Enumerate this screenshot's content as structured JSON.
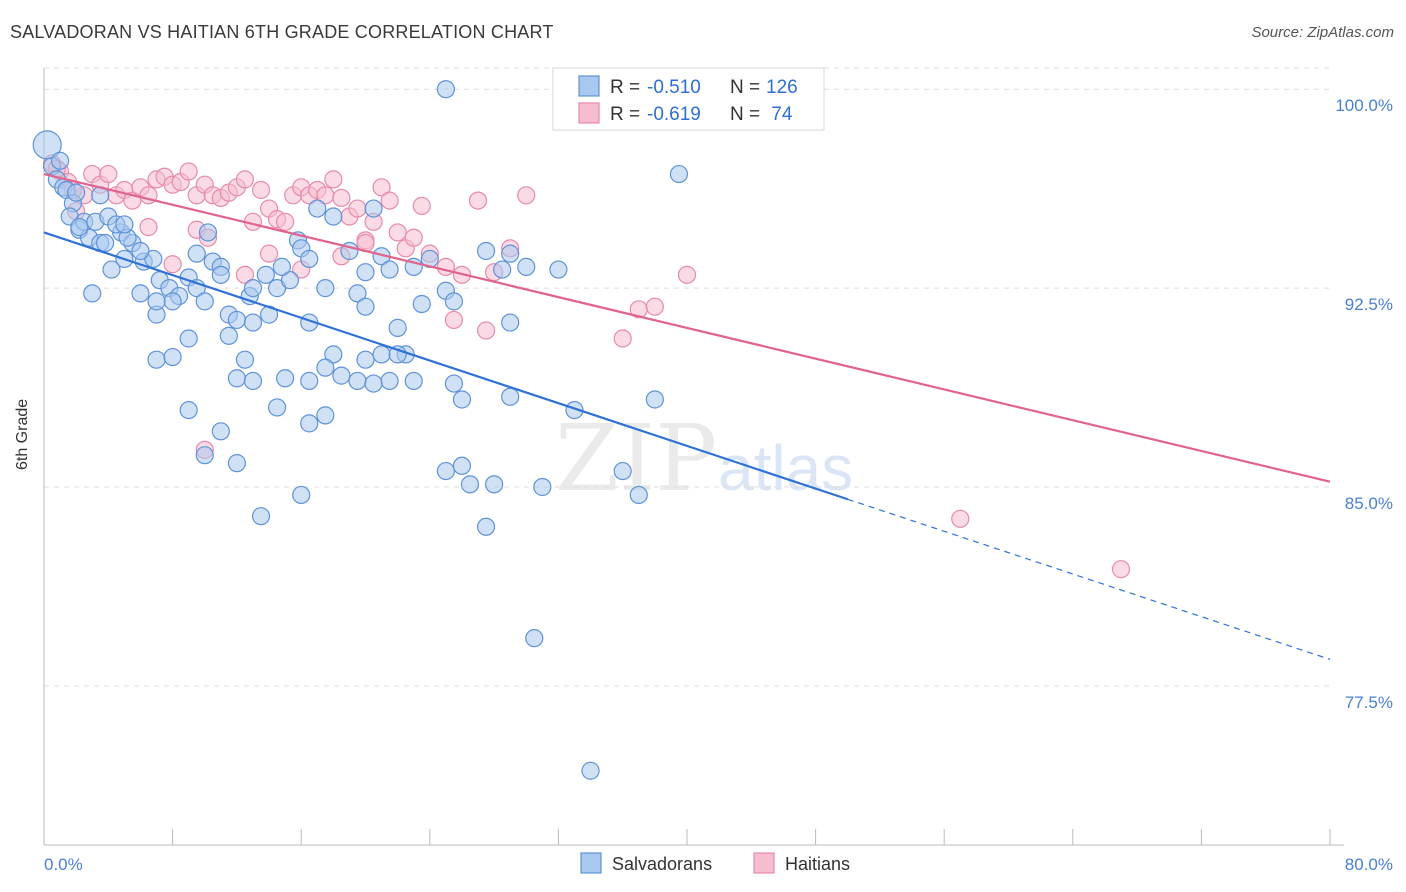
{
  "header": {
    "title": "SALVADORAN VS HAITIAN 6TH GRADE CORRELATION CHART",
    "source": "Source: ZipAtlas.com"
  },
  "watermark": {
    "zip": "ZIP",
    "atlas": "atlas"
  },
  "colors": {
    "blue_fill": "#a9c8ef",
    "blue_stroke": "#5f93d8",
    "blue_line": "#2f72d6",
    "pink_fill": "#f6bdd0",
    "pink_stroke": "#e88aab",
    "pink_line": "#e0648e",
    "axis_label": "#4a7fd4",
    "grid": "#dddddd"
  },
  "stats": {
    "rows": [
      {
        "r_label": "R = ",
        "r_value": "-0.510",
        "n_label": "N = ",
        "n_value": "126"
      },
      {
        "r_label": "R = ",
        "r_value": "-0.619",
        "n_label": "N = ",
        "n_value": " 74"
      }
    ]
  },
  "legend": {
    "items": [
      "Salvadorans",
      "Haitians"
    ]
  },
  "chart_data": {
    "type": "scatter",
    "title": "SALVADORAN VS HAITIAN 6TH GRADE CORRELATION CHART",
    "xlabel": "",
    "ylabel": "6th Grade",
    "xlim": [
      0,
      80
    ],
    "ylim": [
      71.5,
      100.8
    ],
    "x_tick_labels": [
      "0.0%",
      "80.0%"
    ],
    "y_ticks": [
      77.5,
      85.0,
      92.5,
      100.0
    ],
    "y_tick_labels": [
      "77.5%",
      "85.0%",
      "92.5%",
      "100.0%"
    ],
    "grid": true,
    "series": [
      {
        "name": "Salvadorans",
        "trend": {
          "x0": 0,
          "y0": 94.6,
          "x1": 80,
          "y1": 78.5,
          "solid_until": 50
        },
        "points": [
          [
            0.2,
            97.9
          ],
          [
            0.5,
            97.1
          ],
          [
            0.8,
            96.6
          ],
          [
            1.2,
            96.3
          ],
          [
            1.4,
            96.2
          ],
          [
            1.8,
            95.7
          ],
          [
            1.6,
            95.2
          ],
          [
            2.2,
            94.7
          ],
          [
            2.5,
            95.0
          ],
          [
            2.8,
            94.4
          ],
          [
            3.2,
            95.0
          ],
          [
            3.5,
            94.2
          ],
          [
            3.8,
            94.2
          ],
          [
            4.0,
            95.2
          ],
          [
            4.8,
            94.6
          ],
          [
            5.5,
            94.2
          ],
          [
            5.0,
            93.6
          ],
          [
            4.2,
            93.2
          ],
          [
            6.2,
            93.5
          ],
          [
            6.8,
            93.6
          ],
          [
            7.2,
            92.8
          ],
          [
            7.8,
            92.5
          ],
          [
            8.4,
            92.2
          ],
          [
            9.0,
            92.9
          ],
          [
            9.5,
            92.5
          ],
          [
            10.2,
            94.6
          ],
          [
            10.5,
            93.5
          ],
          [
            11.0,
            93.3
          ],
          [
            11.5,
            91.5
          ],
          [
            12.0,
            91.3
          ],
          [
            12.8,
            92.2
          ],
          [
            13.0,
            92.5
          ],
          [
            13.8,
            93.0
          ],
          [
            14.5,
            92.5
          ],
          [
            15.3,
            92.8
          ],
          [
            15.8,
            94.3
          ],
          [
            16.0,
            94.0
          ],
          [
            16.5,
            93.6
          ],
          [
            17.0,
            95.5
          ],
          [
            17.5,
            92.5
          ],
          [
            18.0,
            95.2
          ],
          [
            19.0,
            93.9
          ],
          [
            19.5,
            92.3
          ],
          [
            20.0,
            91.8
          ],
          [
            20.5,
            95.5
          ],
          [
            21.0,
            93.7
          ],
          [
            21.5,
            93.2
          ],
          [
            22.0,
            91.0
          ],
          [
            22.5,
            90.0
          ],
          [
            23.0,
            93.3
          ],
          [
            23.5,
            91.9
          ],
          [
            24.0,
            93.6
          ],
          [
            25.0,
            92.4
          ],
          [
            25.5,
            92.0
          ],
          [
            27.5,
            93.9
          ],
          [
            28.5,
            93.2
          ],
          [
            30.0,
            93.3
          ],
          [
            29.0,
            91.2
          ],
          [
            7.0,
            91.5
          ],
          [
            8.0,
            92.0
          ],
          [
            9.0,
            90.6
          ],
          [
            10.0,
            92.0
          ],
          [
            11.5,
            90.7
          ],
          [
            13.0,
            91.2
          ],
          [
            14.0,
            91.5
          ],
          [
            16.5,
            91.2
          ],
          [
            18.0,
            90.0
          ],
          [
            20.0,
            89.8
          ],
          [
            21.0,
            90.0
          ],
          [
            22.0,
            90.0
          ],
          [
            7.0,
            89.8
          ],
          [
            8.0,
            89.9
          ],
          [
            12.5,
            89.8
          ],
          [
            12.0,
            89.1
          ],
          [
            13.0,
            89.0
          ],
          [
            15.0,
            89.1
          ],
          [
            16.5,
            89.0
          ],
          [
            17.5,
            89.5
          ],
          [
            18.5,
            89.2
          ],
          [
            19.5,
            89.0
          ],
          [
            20.5,
            88.9
          ],
          [
            21.5,
            89.0
          ],
          [
            23.0,
            89.0
          ],
          [
            25.5,
            88.9
          ],
          [
            26.0,
            88.3
          ],
          [
            29.0,
            88.4
          ],
          [
            33.0,
            87.9
          ],
          [
            38.0,
            88.3
          ],
          [
            9.0,
            87.9
          ],
          [
            14.5,
            88.0
          ],
          [
            16.5,
            87.4
          ],
          [
            17.5,
            87.7
          ],
          [
            11.0,
            87.1
          ],
          [
            12.0,
            85.9
          ],
          [
            10.0,
            86.2
          ],
          [
            25.0,
            85.6
          ],
          [
            26.0,
            85.8
          ],
          [
            26.5,
            85.1
          ],
          [
            28.0,
            85.1
          ],
          [
            31.0,
            85.0
          ],
          [
            36.0,
            85.6
          ],
          [
            37.0,
            84.7
          ],
          [
            16.0,
            84.7
          ],
          [
            27.5,
            83.5
          ],
          [
            13.5,
            83.9
          ],
          [
            30.5,
            79.3
          ],
          [
            34.0,
            74.3
          ],
          [
            39.5,
            96.8
          ],
          [
            25.0,
            100.0
          ],
          [
            29.0,
            93.8
          ],
          [
            32.0,
            93.2
          ],
          [
            3.0,
            92.3
          ],
          [
            6.0,
            92.3
          ],
          [
            7.0,
            92.0
          ],
          [
            2.0,
            96.1
          ],
          [
            1.0,
            97.3
          ],
          [
            4.5,
            94.9
          ],
          [
            5.2,
            94.4
          ],
          [
            6.0,
            93.9
          ],
          [
            2.2,
            94.8
          ],
          [
            3.5,
            96.0
          ],
          [
            5.0,
            94.9
          ],
          [
            9.5,
            93.8
          ],
          [
            11.0,
            93.0
          ],
          [
            14.8,
            93.3
          ],
          [
            20.0,
            93.1
          ]
        ]
      },
      {
        "name": "Haitians",
        "trend": {
          "x0": 0,
          "y0": 96.8,
          "x1": 80,
          "y1": 85.2
        },
        "points": [
          [
            0.5,
            97.2
          ],
          [
            1.0,
            96.9
          ],
          [
            1.5,
            96.5
          ],
          [
            2.0,
            95.4
          ],
          [
            2.5,
            96.0
          ],
          [
            3.0,
            96.8
          ],
          [
            3.5,
            96.4
          ],
          [
            4.0,
            96.8
          ],
          [
            4.5,
            96.0
          ],
          [
            5.0,
            96.2
          ],
          [
            5.5,
            95.8
          ],
          [
            6.0,
            96.3
          ],
          [
            6.5,
            96.0
          ],
          [
            7.0,
            96.6
          ],
          [
            7.5,
            96.7
          ],
          [
            8.0,
            96.4
          ],
          [
            8.5,
            96.5
          ],
          [
            9.0,
            96.9
          ],
          [
            9.5,
            96.0
          ],
          [
            10.0,
            96.4
          ],
          [
            10.5,
            96.0
          ],
          [
            11.0,
            95.9
          ],
          [
            11.5,
            96.1
          ],
          [
            12.0,
            96.3
          ],
          [
            12.5,
            96.6
          ],
          [
            13.0,
            95.0
          ],
          [
            13.5,
            96.2
          ],
          [
            14.0,
            95.5
          ],
          [
            14.5,
            95.1
          ],
          [
            15.0,
            95.0
          ],
          [
            15.5,
            96.0
          ],
          [
            16.0,
            96.3
          ],
          [
            16.5,
            96.0
          ],
          [
            17.0,
            96.2
          ],
          [
            17.5,
            96.0
          ],
          [
            18.0,
            96.6
          ],
          [
            18.5,
            95.9
          ],
          [
            19.0,
            95.2
          ],
          [
            19.5,
            95.5
          ],
          [
            20.0,
            94.3
          ],
          [
            20.5,
            95.0
          ],
          [
            21.0,
            96.3
          ],
          [
            21.5,
            95.8
          ],
          [
            22.0,
            94.6
          ],
          [
            22.5,
            94.0
          ],
          [
            23.0,
            94.4
          ],
          [
            23.5,
            95.6
          ],
          [
            24.0,
            93.8
          ],
          [
            25.0,
            93.3
          ],
          [
            26.0,
            93.0
          ],
          [
            27.0,
            95.8
          ],
          [
            28.0,
            93.1
          ],
          [
            29.0,
            94.0
          ],
          [
            30.0,
            96.0
          ],
          [
            6.5,
            94.8
          ],
          [
            8.0,
            93.4
          ],
          [
            9.5,
            94.7
          ],
          [
            10.2,
            94.4
          ],
          [
            12.5,
            93.0
          ],
          [
            14.0,
            93.8
          ],
          [
            16.0,
            93.2
          ],
          [
            18.5,
            93.7
          ],
          [
            20.0,
            94.2
          ],
          [
            25.5,
            91.3
          ],
          [
            27.5,
            90.9
          ],
          [
            36.0,
            90.6
          ],
          [
            37.0,
            91.7
          ],
          [
            38.0,
            91.8
          ],
          [
            40.0,
            93.0
          ],
          [
            10.0,
            86.4
          ],
          [
            57.0,
            83.8
          ],
          [
            67.0,
            81.9
          ],
          [
            0.8,
            97.0
          ],
          [
            1.8,
            96.2
          ]
        ]
      }
    ]
  }
}
